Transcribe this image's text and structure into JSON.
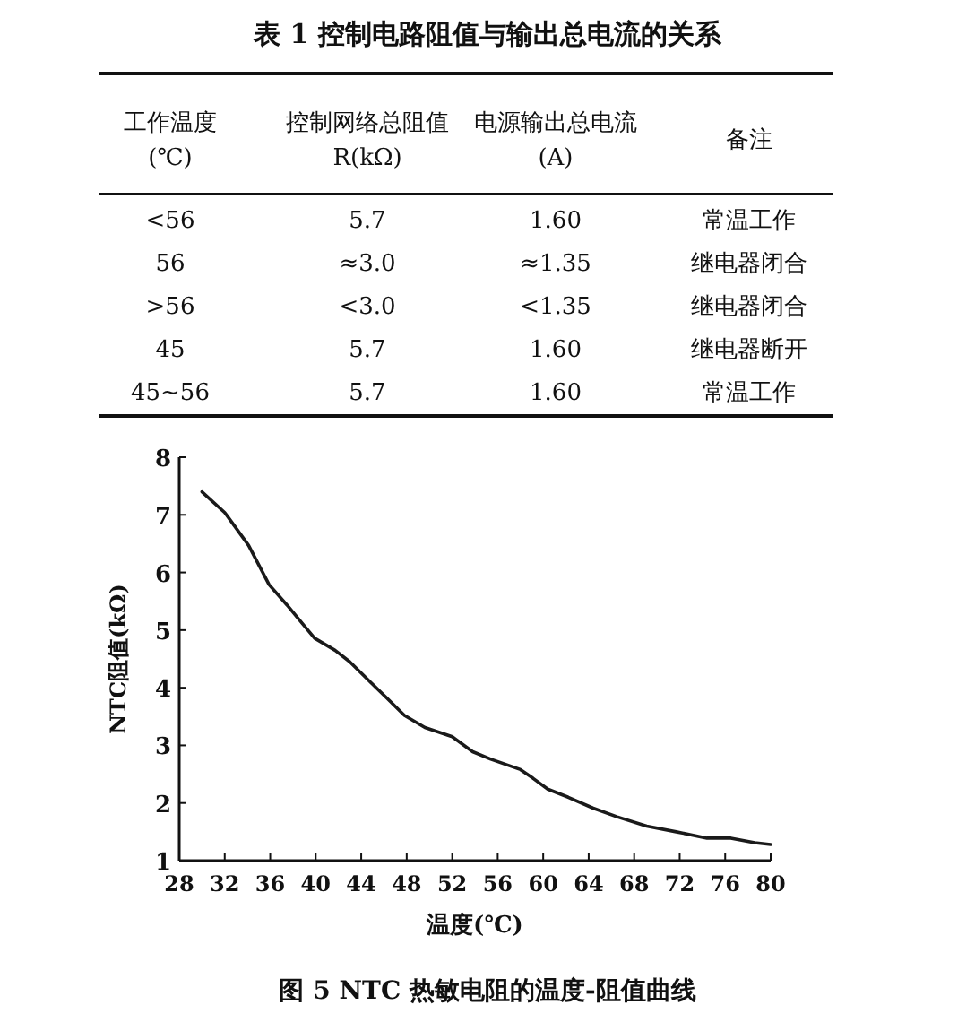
{
  "chart_data": [
    {
      "type": "other",
      "title": "表 1  控制电路阻值与输出总电流的关系",
      "annotations": [
        "工作温度\n(℃)",
        "控制网络总阻值\nR(kΩ)",
        "电源输出总电流\n(A)",
        "备注",
        "<56",
        "5.7",
        "1.60",
        "常温工作",
        "56",
        "≈3.0",
        "≈1.35",
        "继电器闭合",
        ">56",
        "<3.0",
        "<1.35",
        "继电器闭合",
        "45",
        "5.7",
        "1.60",
        "继电器断开",
        "45~56",
        "5.7",
        "1.60",
        "常温工作"
      ]
    },
    {
      "type": "line",
      "title": "图 5  NTC 热敏电阻的温度-阻值曲线",
      "xlabel": "温度(℃)",
      "ylabel": "NTC阻值(kΩ)",
      "x": [
        30.0,
        32.0,
        34.1,
        35.9,
        37.5,
        38.8,
        39.9,
        41.7,
        43.0,
        44.9,
        46.2,
        47.8,
        49.6,
        52.0,
        53.8,
        55.4,
        58.0,
        59.1,
        60.4,
        62.2,
        64.4,
        66.5,
        69.1,
        71.7,
        74.4,
        76.5,
        78.6,
        80.0
      ],
      "series": [
        {
          "color": "#1a1a1a",
          "values": [
            7.4,
            7.04,
            6.47,
            5.79,
            5.43,
            5.12,
            4.86,
            4.65,
            4.45,
            4.08,
            3.83,
            3.52,
            3.31,
            3.15,
            2.89,
            2.76,
            2.58,
            2.43,
            2.24,
            2.1,
            1.91,
            1.76,
            1.6,
            1.5,
            1.39,
            1.39,
            1.31,
            1.28
          ]
        }
      ],
      "xlim": [
        28,
        80
      ],
      "xticks": [
        28,
        32,
        36,
        40,
        44,
        48,
        52,
        56,
        60,
        64,
        68,
        72,
        76,
        80
      ],
      "ylim": [
        1,
        8
      ],
      "yticks": [
        1,
        2,
        3,
        4,
        5,
        6,
        7,
        8
      ],
      "grid": false,
      "marker": "none",
      "line_style": "solid"
    }
  ]
}
